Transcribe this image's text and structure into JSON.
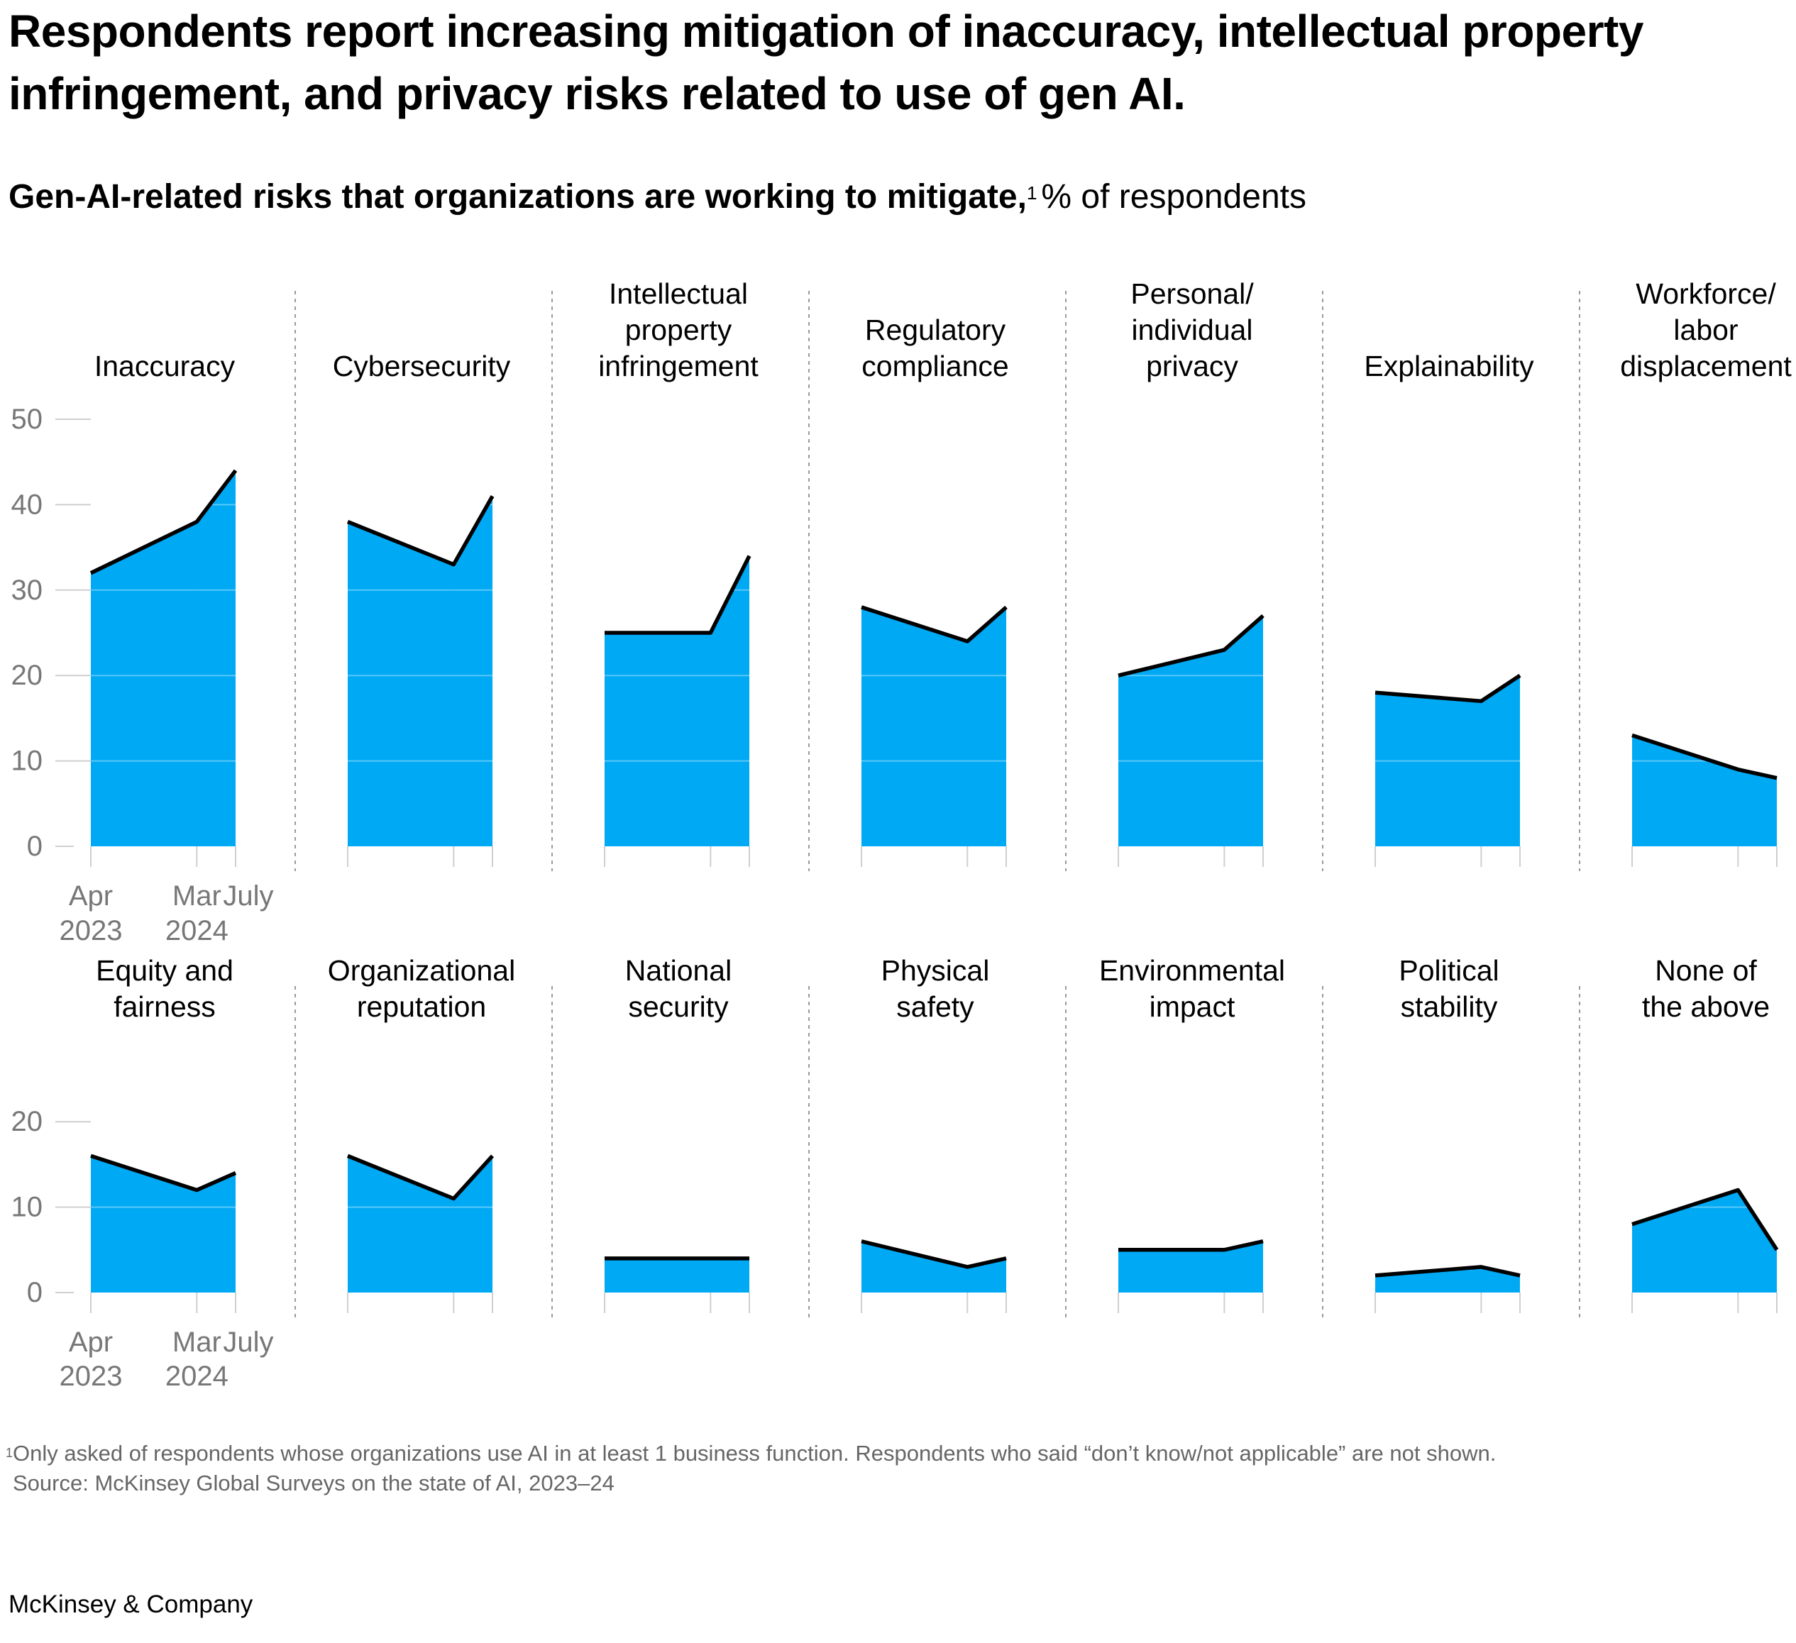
{
  "title": "Respondents report increasing mitigation of inaccuracy, intellectual property infringement, and privacy risks related to use of gen AI.",
  "subtitle": {
    "main": "Gen-AI-related risks that organizations are working to mitigate,",
    "footnote_marker": "1",
    "unit": "% of respondents"
  },
  "footnote": {
    "marker": "1",
    "text": "Only asked of respondents whose organizations use AI in at least 1 business function. Respondents who said “don’t know/not applicable” are not shown."
  },
  "source": "Source: McKinsey Global Surveys on the state of AI, 2023–24",
  "brand": "McKinsey & Company",
  "colors": {
    "area": "#00A9F4",
    "line": "#000000",
    "grid": "#cfcfcf",
    "axis_text": "#777777"
  },
  "chart_data": {
    "type": "area",
    "x": [
      "Apr 2023",
      "Mar 2024",
      "July 2024"
    ],
    "x_tick_labels": [
      {
        "line1": "Apr",
        "line2": "2023"
      },
      {
        "line1": "Mar",
        "line2": "2024"
      },
      {
        "line1": "July",
        "line2": ""
      }
    ],
    "rows": [
      {
        "ylim": [
          0,
          50
        ],
        "yticks": [
          "0",
          "10",
          "20",
          "30",
          "40",
          "50"
        ],
        "panels": [
          {
            "name": "Inaccuracy",
            "label_lines": [
              "Inaccuracy"
            ],
            "values": [
              32,
              38,
              44
            ]
          },
          {
            "name": "Cybersecurity",
            "label_lines": [
              "Cybersecurity"
            ],
            "values": [
              38,
              33,
              41
            ]
          },
          {
            "name": "Intellectual property infringement",
            "label_lines": [
              "Intellectual",
              "property",
              "infringement"
            ],
            "values": [
              25,
              25,
              34
            ]
          },
          {
            "name": "Regulatory compliance",
            "label_lines": [
              "Regulatory",
              "compliance"
            ],
            "values": [
              28,
              24,
              28
            ]
          },
          {
            "name": "Personal/individual privacy",
            "label_lines": [
              "Personal/",
              "individual",
              "privacy"
            ],
            "values": [
              20,
              23,
              27
            ]
          },
          {
            "name": "Explainability",
            "label_lines": [
              "Explainability"
            ],
            "values": [
              18,
              17,
              20
            ]
          },
          {
            "name": "Workforce/labor displacement",
            "label_lines": [
              "Workforce/",
              "labor",
              "displacement"
            ],
            "values": [
              13,
              9,
              8
            ]
          }
        ]
      },
      {
        "ylim": [
          0,
          20
        ],
        "yticks": [
          "0",
          "10",
          "20"
        ],
        "panels": [
          {
            "name": "Equity and fairness",
            "label_lines": [
              "Equity and",
              "fairness"
            ],
            "values": [
              16,
              12,
              14
            ]
          },
          {
            "name": "Organizational reputation",
            "label_lines": [
              "Organizational",
              "reputation"
            ],
            "values": [
              16,
              11,
              16
            ]
          },
          {
            "name": "National security",
            "label_lines": [
              "National",
              "security"
            ],
            "values": [
              4,
              4,
              4
            ]
          },
          {
            "name": "Physical safety",
            "label_lines": [
              "Physical",
              "safety"
            ],
            "values": [
              6,
              3,
              4
            ]
          },
          {
            "name": "Environmental impact",
            "label_lines": [
              "Environmental",
              "impact"
            ],
            "values": [
              5,
              5,
              6
            ]
          },
          {
            "name": "Political stability",
            "label_lines": [
              "Political",
              "stability"
            ],
            "values": [
              2,
              3,
              2
            ]
          },
          {
            "name": "None of the above",
            "label_lines": [
              "None of",
              "the above"
            ],
            "values": [
              8,
              12,
              5
            ]
          }
        ]
      }
    ]
  }
}
